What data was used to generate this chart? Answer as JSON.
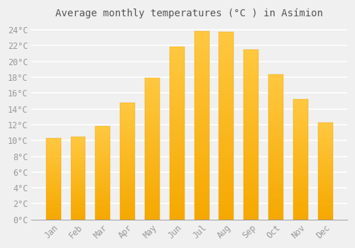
{
  "title": "Average monthly temperatures (°C ) in Asímion",
  "months": [
    "Jan",
    "Feb",
    "Mar",
    "Apr",
    "May",
    "Jun",
    "Jul",
    "Aug",
    "Sep",
    "Oct",
    "Nov",
    "Dec"
  ],
  "values": [
    10.3,
    10.5,
    11.8,
    14.8,
    17.9,
    21.9,
    23.8,
    23.7,
    21.5,
    18.4,
    15.2,
    12.3
  ],
  "bar_color_top": "#FFB733",
  "bar_color_bottom": "#F5A800",
  "background_color": "#f0f0f0",
  "grid_color": "#ffffff",
  "ylim": [
    0,
    25
  ],
  "yticks": [
    0,
    2,
    4,
    6,
    8,
    10,
    12,
    14,
    16,
    18,
    20,
    22,
    24
  ],
  "title_fontsize": 10,
  "tick_fontsize": 8.5,
  "tick_color": "#999999",
  "title_color": "#555555"
}
